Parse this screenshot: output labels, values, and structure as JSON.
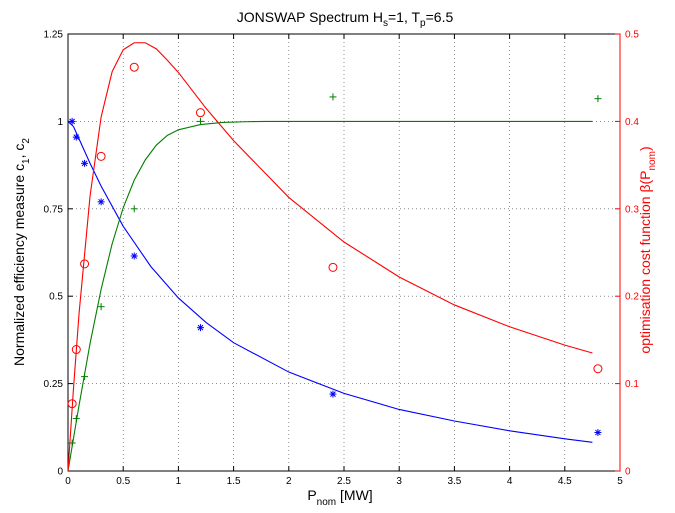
{
  "chart_data": {
    "type": "line",
    "title": {
      "main": "JONSWAP Spectrum H",
      "sub1": "s",
      "mid": "=1, T",
      "sub2": "p",
      "end": "=6.5"
    },
    "xlabel": {
      "main": "P",
      "sub": "nom",
      "end": " [MW]"
    },
    "ylabel_left": {
      "main": "Normalized efficiency measure c",
      "sub1": "1",
      "mid": ", c",
      "sub2": "2"
    },
    "ylabel_right": {
      "main": "optimisation cost function β(P",
      "sub": "nom",
      "end": ")"
    },
    "xlim": [
      0,
      5
    ],
    "ylim_left": [
      0,
      1.25
    ],
    "ylim_right": [
      0,
      0.5
    ],
    "grid": true,
    "x_ticks": [
      "0",
      "0.5",
      "1",
      "1.5",
      "2",
      "2.5",
      "3",
      "3.5",
      "4",
      "4.5",
      "5"
    ],
    "y_ticks_left": [
      "0",
      "0.25",
      "0.5",
      "0.75",
      "1",
      "1.25"
    ],
    "y_ticks_right": [
      "0",
      "0.1",
      "0.2",
      "0.3",
      "0.4",
      "0.5"
    ],
    "series": [
      {
        "color": "#0000ff",
        "axis": "left",
        "marker": "asterisk",
        "points": {
          "x": [
            0.0375,
            0.075,
            0.15,
            0.3,
            0.6,
            1.2,
            2.4,
            4.8
          ],
          "y": [
            1.0,
            0.955,
            0.88,
            0.77,
            0.615,
            0.41,
            0.22,
            0.11
          ]
        },
        "curve": {
          "x": [
            0,
            0.05,
            0.1,
            0.2,
            0.3,
            0.5,
            0.75,
            1.0,
            1.25,
            1.5,
            2.0,
            2.5,
            3.0,
            3.5,
            4.0,
            4.5,
            4.75
          ],
          "y": [
            1.0,
            0.985,
            0.95,
            0.88,
            0.815,
            0.7,
            0.585,
            0.495,
            0.425,
            0.367,
            0.283,
            0.222,
            0.176,
            0.143,
            0.115,
            0.092,
            0.082
          ]
        }
      },
      {
        "color": "#007f00",
        "axis": "left",
        "marker": "plus",
        "points": {
          "x": [
            0.0375,
            0.075,
            0.15,
            0.3,
            0.6,
            1.2,
            2.4,
            4.8
          ],
          "y": [
            0.08,
            0.15,
            0.27,
            0.47,
            0.75,
            1.0,
            1.07,
            1.065
          ]
        },
        "curve": {
          "x": [
            0,
            0.1,
            0.2,
            0.3,
            0.4,
            0.5,
            0.6,
            0.7,
            0.8,
            0.9,
            1.0,
            1.2,
            1.4,
            1.6,
            1.8,
            2.0,
            2.5,
            3.0,
            4.0,
            4.75
          ],
          "y": [
            0.0,
            0.188,
            0.365,
            0.52,
            0.65,
            0.753,
            0.832,
            0.89,
            0.932,
            0.96,
            0.976,
            0.991,
            0.997,
            0.999,
            1.0,
            1.0,
            1.0,
            1.0,
            1.0,
            1.0
          ]
        }
      },
      {
        "color": "#ff0000",
        "axis": "right",
        "marker": "circle",
        "points": {
          "x": [
            0.0375,
            0.075,
            0.15,
            0.3,
            0.6,
            1.2,
            2.4,
            4.8
          ],
          "y": [
            0.077,
            0.139,
            0.237,
            0.36,
            0.462,
            0.41,
            0.233,
            0.117
          ]
        },
        "curve": {
          "x": [
            0,
            0.05,
            0.1,
            0.2,
            0.3,
            0.4,
            0.5,
            0.6,
            0.7,
            0.8,
            0.9,
            1.0,
            1.25,
            1.5,
            2.0,
            2.5,
            3.0,
            3.5,
            4.0,
            4.5,
            4.75
          ],
          "y": [
            0.0,
            0.095,
            0.18,
            0.315,
            0.405,
            0.457,
            0.482,
            0.49,
            0.49,
            0.483,
            0.47,
            0.456,
            0.415,
            0.378,
            0.313,
            0.262,
            0.222,
            0.19,
            0.165,
            0.144,
            0.135
          ]
        }
      }
    ]
  }
}
